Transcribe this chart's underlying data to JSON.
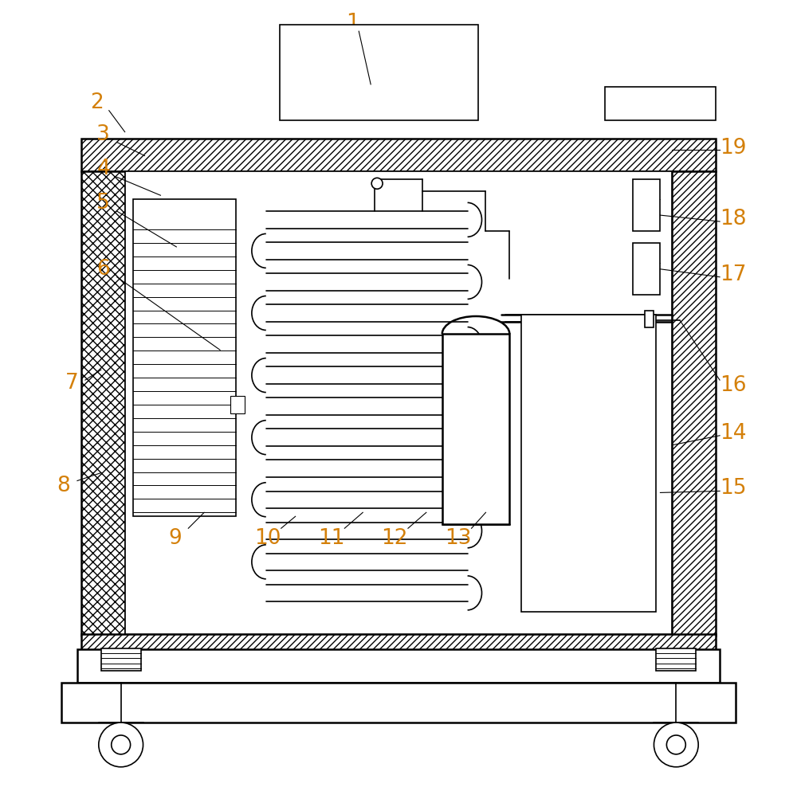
{
  "bg_color": "#ffffff",
  "line_color": "#000000",
  "label_color": "#d4800a",
  "fig_width": 10.0,
  "fig_height": 9.98
}
